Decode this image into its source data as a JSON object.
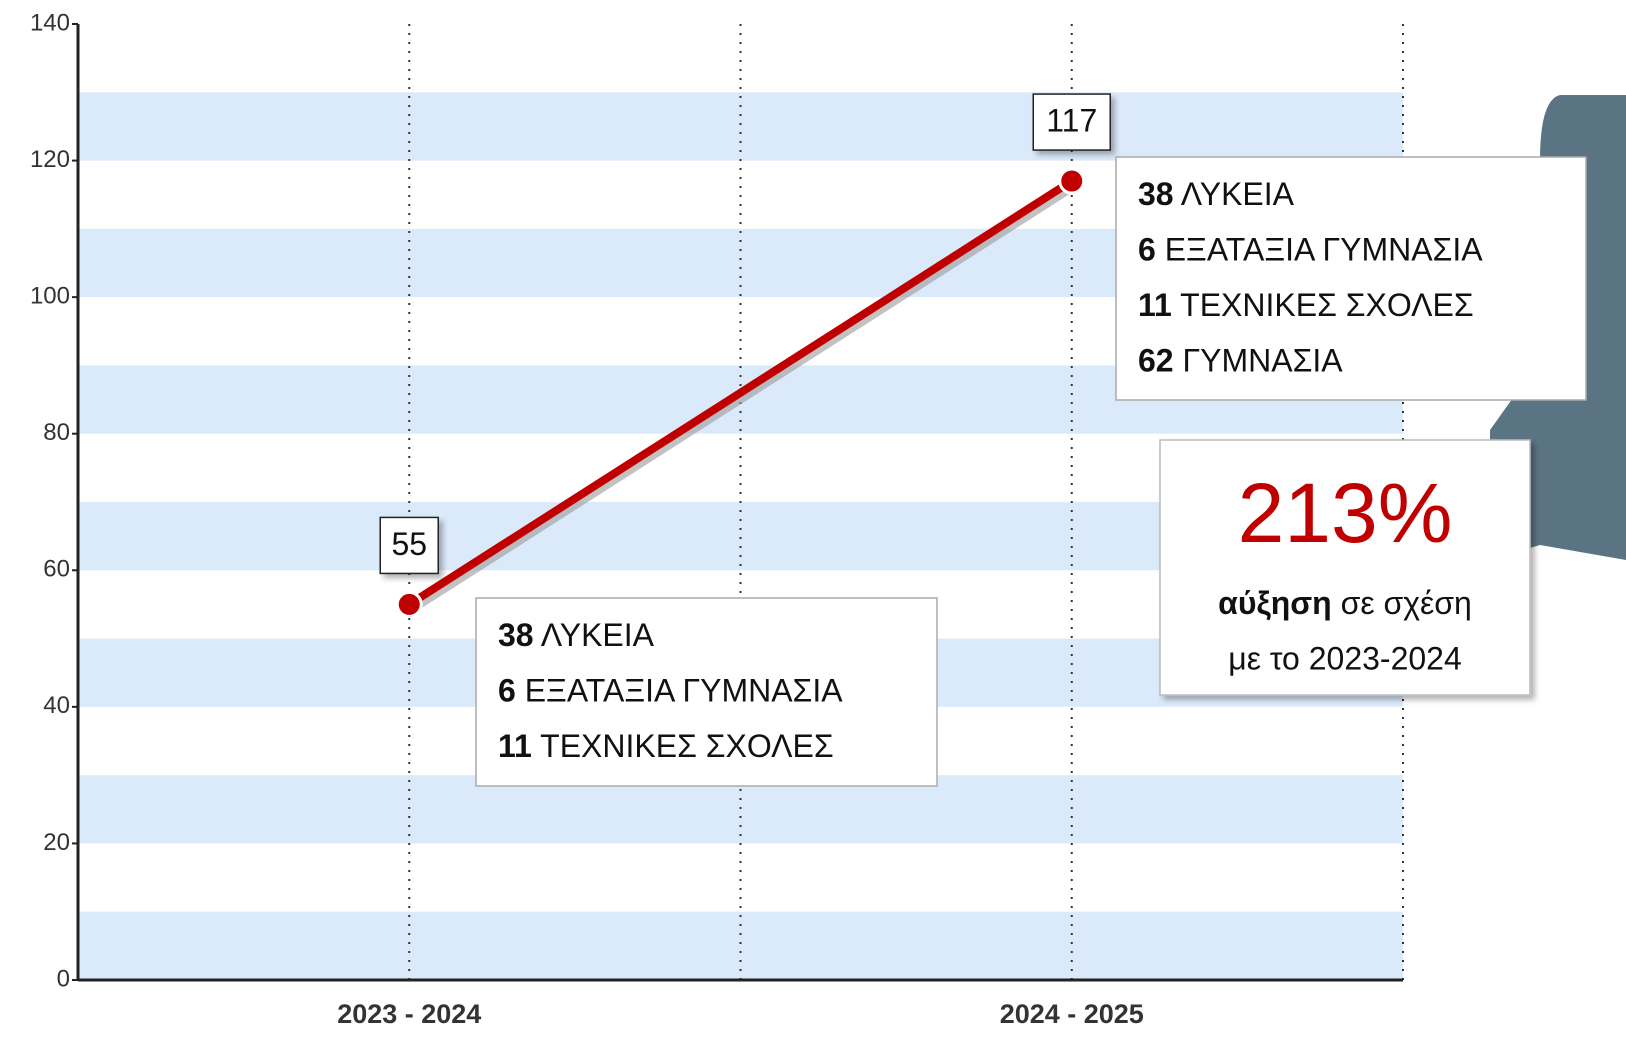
{
  "chart_data": {
    "type": "line",
    "categories": [
      "2023 - 2024",
      "2024 - 2025"
    ],
    "series": [
      {
        "color": "#c00000",
        "values": [
          55,
          117
        ]
      }
    ],
    "ylim": [
      0,
      140
    ],
    "yticks": [
      0,
      20,
      40,
      60,
      80,
      100,
      120,
      140
    ],
    "stripes": true,
    "stripe_color": "#dbeafb",
    "grid": true,
    "annotations": [
      {
        "lines": [
          {
            "number": 38,
            "label": "ΛΥΚΕΙΑ"
          },
          {
            "number": 6,
            "label": "ΕΞΑΤΑΞΙΑ ΓΥΜΝΑΣΙΑ"
          },
          {
            "number": 11,
            "label": "ΤΕΧΝΙΚΕΣ ΣΧΟΛΕΣ"
          }
        ]
      },
      {
        "lines": [
          {
            "number": 38,
            "label": "ΛΥΚΕΙΑ"
          },
          {
            "number": 6,
            "label": "ΕΞΑΤΑΞΙΑ ΓΥΜΝΑΣΙΑ"
          },
          {
            "number": 11,
            "label": "ΤΕΧΝΙΚΕΣ ΣΧΟΛΕΣ"
          },
          {
            "number": 62,
            "label": "ΓΥΜΝΑΣΙΑ"
          }
        ]
      }
    ],
    "highlight": {
      "figure": "213%",
      "bold": "αύξηση",
      "text": [
        "σε σχέση",
        "με το 2023-2024"
      ]
    }
  }
}
